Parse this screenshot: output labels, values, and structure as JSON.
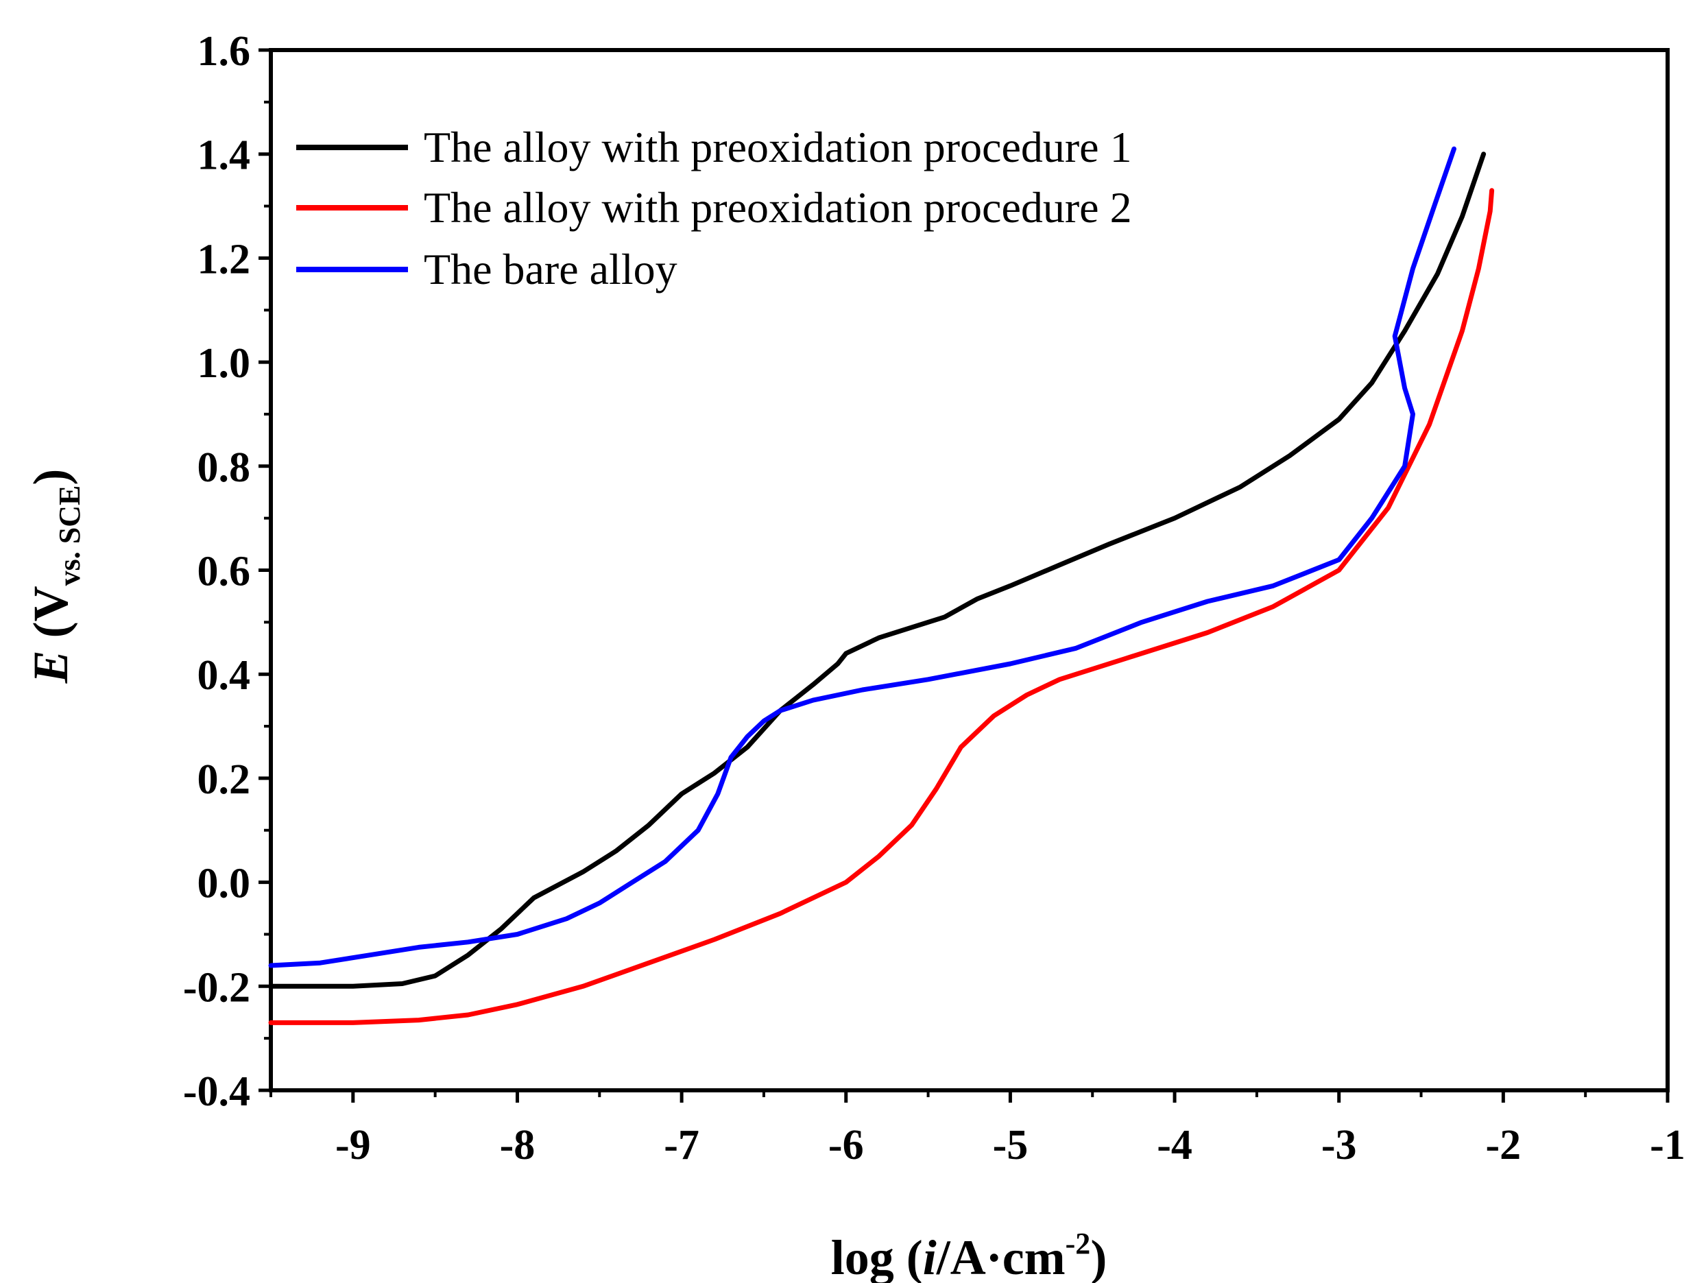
{
  "chart_data": {
    "type": "line",
    "title": "",
    "xlabel": {
      "prefix": "log (",
      "italic": "i",
      "middle": "/A·cm",
      "superscript": "-2",
      "suffix": ")"
    },
    "ylabel": {
      "italic": "E",
      "middle": " (V",
      "subscript": "vs. SCE",
      "suffix": ")"
    },
    "xlim": [
      -9.5,
      -1
    ],
    "ylim": [
      -0.4,
      1.6
    ],
    "x_ticks": [
      -9,
      -8,
      -7,
      -6,
      -5,
      -4,
      -3,
      -2,
      -1
    ],
    "x_tick_labels": [
      "-9",
      "-8",
      "-7",
      "-6",
      "-5",
      "-4",
      "-3",
      "-2",
      "-1"
    ],
    "y_ticks": [
      -0.4,
      -0.2,
      0.0,
      0.2,
      0.4,
      0.6,
      0.8,
      1.0,
      1.2,
      1.4,
      1.6
    ],
    "y_tick_labels": [
      "-0.4",
      "-0.2",
      "0.0",
      "0.2",
      "0.4",
      "0.6",
      "0.8",
      "1.0",
      "1.2",
      "1.4",
      "1.6"
    ],
    "legend_position": "top-left",
    "series": [
      {
        "name": "The alloy with preoxidation procedure 1",
        "color": "#000000",
        "points": [
          [
            -9.5,
            -0.2
          ],
          [
            -9.0,
            -0.2
          ],
          [
            -8.7,
            -0.195
          ],
          [
            -8.5,
            -0.18
          ],
          [
            -8.3,
            -0.14
          ],
          [
            -8.1,
            -0.09
          ],
          [
            -7.9,
            -0.03
          ],
          [
            -7.6,
            0.02
          ],
          [
            -7.4,
            0.06
          ],
          [
            -7.2,
            0.11
          ],
          [
            -7.0,
            0.17
          ],
          [
            -6.8,
            0.21
          ],
          [
            -6.6,
            0.26
          ],
          [
            -6.4,
            0.33
          ],
          [
            -6.2,
            0.38
          ],
          [
            -6.05,
            0.42
          ],
          [
            -6.0,
            0.44
          ],
          [
            -5.8,
            0.47
          ],
          [
            -5.6,
            0.49
          ],
          [
            -5.4,
            0.51
          ],
          [
            -5.2,
            0.545
          ],
          [
            -5.0,
            0.57
          ],
          [
            -4.7,
            0.61
          ],
          [
            -4.4,
            0.65
          ],
          [
            -4.0,
            0.7
          ],
          [
            -3.6,
            0.76
          ],
          [
            -3.3,
            0.82
          ],
          [
            -3.0,
            0.89
          ],
          [
            -2.8,
            0.96
          ],
          [
            -2.6,
            1.06
          ],
          [
            -2.4,
            1.17
          ],
          [
            -2.25,
            1.28
          ],
          [
            -2.12,
            1.4
          ]
        ]
      },
      {
        "name": "The alloy with preoxidation procedure 2",
        "color": "#ff0000",
        "points": [
          [
            -9.5,
            -0.27
          ],
          [
            -9.0,
            -0.27
          ],
          [
            -8.6,
            -0.265
          ],
          [
            -8.3,
            -0.255
          ],
          [
            -8.0,
            -0.235
          ],
          [
            -7.6,
            -0.2
          ],
          [
            -7.2,
            -0.155
          ],
          [
            -6.8,
            -0.11
          ],
          [
            -6.4,
            -0.06
          ],
          [
            -6.0,
            0.0
          ],
          [
            -5.8,
            0.05
          ],
          [
            -5.6,
            0.11
          ],
          [
            -5.45,
            0.18
          ],
          [
            -5.3,
            0.26
          ],
          [
            -5.1,
            0.32
          ],
          [
            -4.9,
            0.36
          ],
          [
            -4.7,
            0.39
          ],
          [
            -4.3,
            0.43
          ],
          [
            -3.8,
            0.48
          ],
          [
            -3.4,
            0.53
          ],
          [
            -3.0,
            0.6
          ],
          [
            -2.7,
            0.72
          ],
          [
            -2.45,
            0.88
          ],
          [
            -2.25,
            1.06
          ],
          [
            -2.15,
            1.18
          ],
          [
            -2.08,
            1.29
          ],
          [
            -2.07,
            1.33
          ]
        ]
      },
      {
        "name": "The bare alloy",
        "color": "#0000ff",
        "points": [
          [
            -9.5,
            -0.16
          ],
          [
            -9.2,
            -0.155
          ],
          [
            -8.9,
            -0.14
          ],
          [
            -8.6,
            -0.125
          ],
          [
            -8.3,
            -0.115
          ],
          [
            -8.0,
            -0.1
          ],
          [
            -7.7,
            -0.07
          ],
          [
            -7.5,
            -0.04
          ],
          [
            -7.3,
            0.0
          ],
          [
            -7.1,
            0.04
          ],
          [
            -6.9,
            0.1
          ],
          [
            -6.78,
            0.17
          ],
          [
            -6.7,
            0.24
          ],
          [
            -6.6,
            0.28
          ],
          [
            -6.5,
            0.31
          ],
          [
            -6.4,
            0.33
          ],
          [
            -6.2,
            0.35
          ],
          [
            -5.9,
            0.37
          ],
          [
            -5.5,
            0.39
          ],
          [
            -5.0,
            0.42
          ],
          [
            -4.6,
            0.45
          ],
          [
            -4.2,
            0.5
          ],
          [
            -3.8,
            0.54
          ],
          [
            -3.4,
            0.57
          ],
          [
            -3.0,
            0.62
          ],
          [
            -2.8,
            0.7
          ],
          [
            -2.6,
            0.8
          ],
          [
            -2.55,
            0.9
          ],
          [
            -2.6,
            0.95
          ],
          [
            -2.66,
            1.05
          ],
          [
            -2.55,
            1.18
          ],
          [
            -2.42,
            1.3
          ],
          [
            -2.3,
            1.41
          ]
        ]
      }
    ]
  }
}
